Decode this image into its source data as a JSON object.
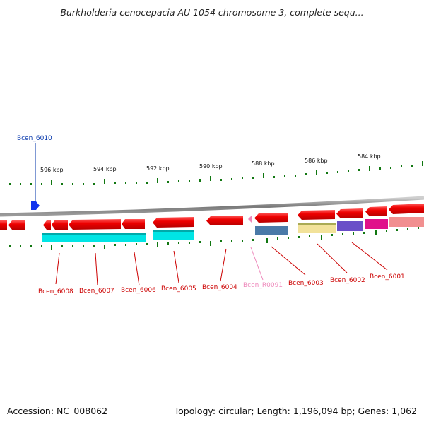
{
  "title": "Burkholderia cenocepacia AU 1054 chromosome 3, complete sequ...",
  "footer": {
    "accession": "Accession: NC_008062",
    "summary": "Topology: circular; Length: 1,196,094 bp; Genes: 1,062"
  },
  "ticks": [
    "596 kbp",
    "594 kbp",
    "592 kbp",
    "590 kbp",
    "588 kbp",
    "586 kbp",
    "584 kbp"
  ],
  "genes": [
    {
      "label": "Bcen_6010",
      "color": "#0033aa"
    },
    {
      "label": "Bcen_6008",
      "color": "#cc0000"
    },
    {
      "label": "Bcen_6007",
      "color": "#cc0000"
    },
    {
      "label": "Bcen_6006",
      "color": "#cc0000"
    },
    {
      "label": "Bcen_6005",
      "color": "#cc0000"
    },
    {
      "label": "Bcen_6004",
      "color": "#cc0000"
    },
    {
      "label": "Bcen_R0091",
      "color": "#ee88bb"
    },
    {
      "label": "Bcen_6003",
      "color": "#cc0000"
    },
    {
      "label": "Bcen_6002",
      "color": "#cc0000"
    },
    {
      "label": "Bcen_6001",
      "color": "#cc0000"
    }
  ]
}
